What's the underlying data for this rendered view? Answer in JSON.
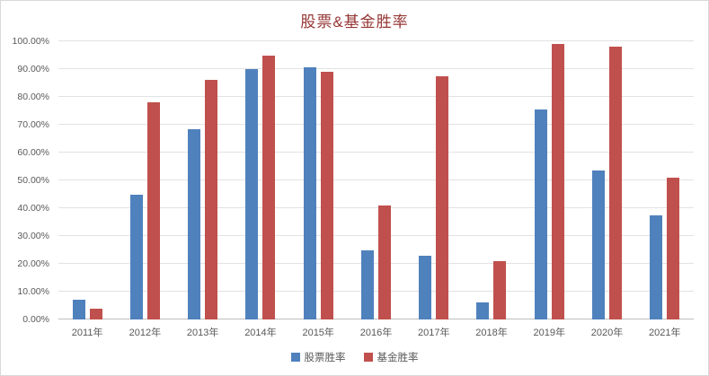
{
  "chart_data": {
    "type": "bar",
    "title": "股票&基金胜率",
    "title_color": "#953735",
    "categories": [
      "2011年",
      "2012年",
      "2013年",
      "2014年",
      "2015年",
      "2016年",
      "2017年",
      "2018年",
      "2019年",
      "2020年",
      "2021年"
    ],
    "series": [
      {
        "name": "股票胜率",
        "color": "#4F81BD",
        "values": [
          7,
          45,
          68.5,
          90,
          90.5,
          25,
          23,
          6,
          75.5,
          53.5,
          37.5
        ]
      },
      {
        "name": "基金胜率",
        "color": "#C0504D",
        "values": [
          4,
          78,
          86,
          95,
          89,
          41,
          87.5,
          21,
          99,
          98,
          51
        ]
      }
    ],
    "ylabel": "",
    "xlabel": "",
    "ylim": [
      0,
      100
    ],
    "ytick_step": 10,
    "ytick_suffix": "%",
    "ytick_decimals": 2,
    "grid": true,
    "legend_position": "bottom"
  }
}
